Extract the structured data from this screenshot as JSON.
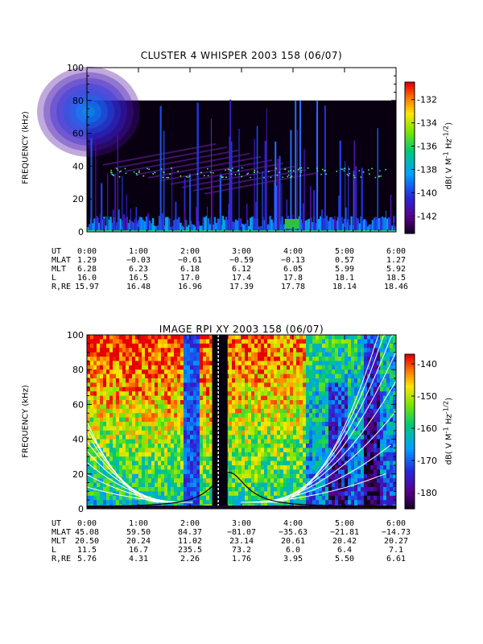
{
  "panels": [
    {
      "id": "whisper",
      "title": "CLUSTER 4 WHISPER 2003 158 (06/07)",
      "ylabel": "FREQUENCY (kHz)",
      "yticks": [
        "0",
        "20",
        "40",
        "60",
        "80",
        "100"
      ],
      "xticks": [
        "0:00",
        "1:00",
        "2:00",
        "3:00",
        "4:00",
        "5:00",
        "6:00"
      ],
      "colorbar": {
        "ticks": [
          "-132",
          "-134",
          "-136",
          "-138",
          "-140",
          "-142"
        ],
        "label": "dB( V M^-1 Hz^-1/2)"
      },
      "orbit": [
        {
          "name": "UT",
          "values": [
            "0:00",
            "1:00",
            "2:00",
            "3:00",
            "4:00",
            "5:00",
            "6:00"
          ]
        },
        {
          "name": "MLAT",
          "values": [
            "1.29",
            "-0.03",
            "-0.61",
            "-0.59",
            "-0.13",
            "0.57",
            "1.27"
          ]
        },
        {
          "name": "MLT",
          "values": [
            "6.28",
            "6.23",
            "6.18",
            "6.12",
            "6.05",
            "5.99",
            "5.92"
          ]
        },
        {
          "name": "L",
          "values": [
            "16.0",
            "16.5",
            "17.0",
            "17.4",
            "17.8",
            "18.1",
            "18.5"
          ]
        },
        {
          "name": "R,RE",
          "values": [
            "15.97",
            "16.48",
            "16.96",
            "17.39",
            "17.78",
            "18.14",
            "18.46"
          ]
        }
      ]
    },
    {
      "id": "rpi",
      "title": "IMAGE RPI XY 2003 158 (06/07)",
      "ylabel": "FREQUENCY (kHz)",
      "yticks": [
        "0",
        "20",
        "40",
        "60",
        "80",
        "100"
      ],
      "xticks": [
        "0:00",
        "1:00",
        "2:00",
        "3:00",
        "4:00",
        "5:00",
        "6:00"
      ],
      "colorbar": {
        "ticks": [
          "-140",
          "-150",
          "-160",
          "-170",
          "-180"
        ],
        "label": "dB( V M^-1 Hz^-1/2)"
      },
      "orbit": [
        {
          "name": "UT",
          "values": [
            "0:00",
            "1:00",
            "2:00",
            "3:00",
            "4:00",
            "5:00",
            "6:00"
          ]
        },
        {
          "name": "MLAT",
          "values": [
            "45.08",
            "59.50",
            "84.37",
            "-81.07",
            "-35.63",
            "-21.81",
            "-14.73"
          ]
        },
        {
          "name": "MLT",
          "values": [
            "20.50",
            "20.24",
            "11.02",
            "23.14",
            "20.61",
            "20.42",
            "20.27"
          ]
        },
        {
          "name": "L",
          "values": [
            "11.5",
            "16.7",
            "235.5",
            "73.2",
            "6.0",
            "6.4",
            "7.1"
          ]
        },
        {
          "name": "R,RE",
          "values": [
            "5.76",
            "4.31",
            "2.26",
            "1.76",
            "3.95",
            "5.50",
            "6.61"
          ]
        }
      ]
    }
  ],
  "chart_data": [
    {
      "type": "heatmap",
      "title": "CLUSTER 4 WHISPER 2003 158 (06/07)",
      "ylabel": "FREQUENCY (kHz)",
      "x_range": [
        "0:00",
        "6:00"
      ],
      "ylim": [
        0,
        100
      ],
      "data_ylim": [
        0,
        80
      ],
      "colorbar_range_db": [
        -143,
        -131
      ],
      "colorbar_label": "dB( V M^-1 Hz^-1/2)"
    },
    {
      "type": "heatmap",
      "title": "IMAGE RPI XY 2003 158 (06/07)",
      "ylabel": "FREQUENCY (kHz)",
      "x_range": [
        "0:00",
        "6:00"
      ],
      "ylim": [
        0,
        100
      ],
      "colorbar_range_db": [
        -185,
        -137
      ],
      "colorbar_label": "dB( V M^-1 Hz^-1/2)"
    }
  ]
}
